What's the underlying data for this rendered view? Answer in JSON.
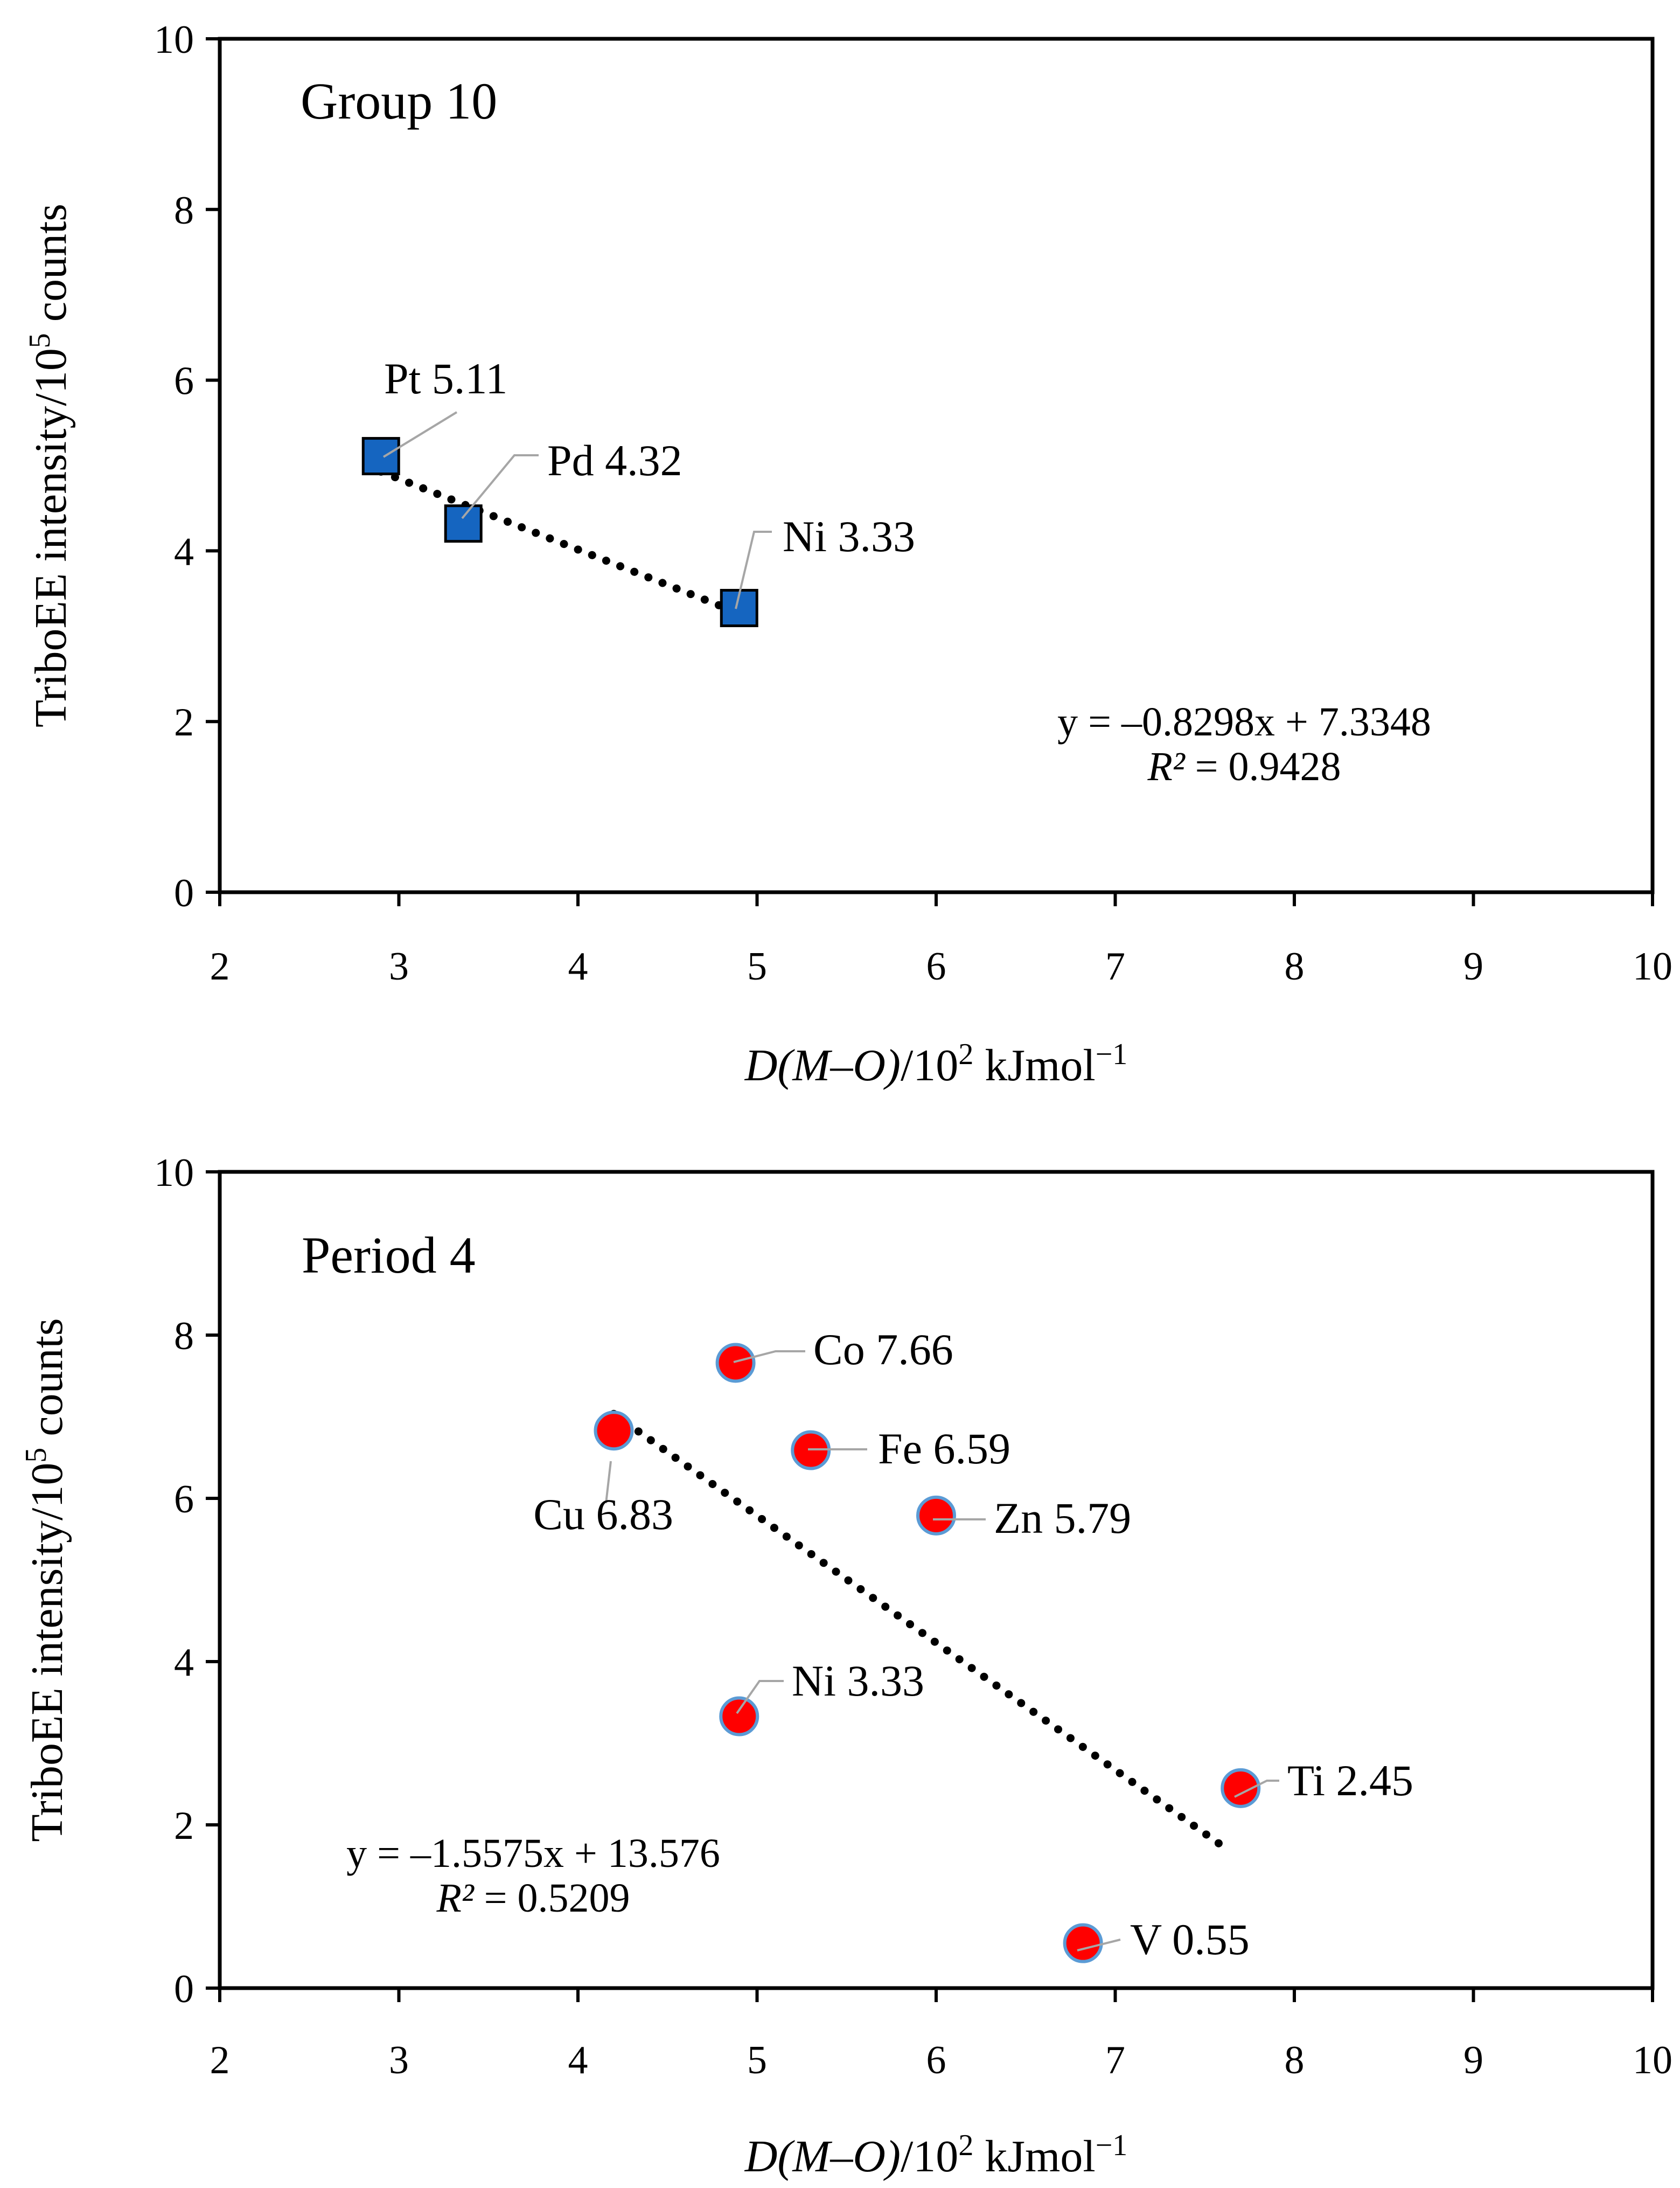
{
  "colors": {
    "square_fill": "#1565c0",
    "circle_fill": "#ff0000",
    "circle_stroke": "#5b9bd5",
    "leader": "#a6a6a6",
    "trend": "#000000"
  },
  "chart_data": [
    {
      "type": "scatter",
      "title": "Group 10",
      "marker": "square",
      "xlabel": {
        "prefix": "D(M–O)",
        "base": "/10",
        "sup": "2",
        "suffix": " kJmol",
        "unit_sup": "−1"
      },
      "ylabel": {
        "prefix": "TriboEE intensity/10",
        "sup": "5",
        "suffix": " counts"
      },
      "xlim": [
        2,
        10
      ],
      "ylim": [
        0,
        10
      ],
      "xticks": [
        2,
        3,
        4,
        5,
        6,
        7,
        8,
        9,
        10
      ],
      "yticks": [
        0,
        2,
        4,
        6,
        8,
        10
      ],
      "points": [
        {
          "name": "Pt 5.11",
          "x": 2.9,
          "y": 5.11
        },
        {
          "name": "Pd 4.32",
          "x": 3.36,
          "y": 4.32
        },
        {
          "name": "Ni 3.33",
          "x": 4.9,
          "y": 3.33
        }
      ],
      "trendline": {
        "style": "dotted",
        "slope": -0.8298,
        "intercept": 7.3348,
        "x_range": [
          2.9,
          4.9
        ]
      },
      "equation": "y = –0.8298x + 7.3348",
      "r2_label": "R²",
      "r2_value": " = 0.9428"
    },
    {
      "type": "scatter",
      "title": "Period 4",
      "marker": "circle",
      "xlabel": {
        "prefix": "D(M–O)",
        "base": "/10",
        "sup": "2",
        "suffix": " kJmol",
        "unit_sup": "−1"
      },
      "ylabel": {
        "prefix": "TriboEE intensity/10",
        "sup": "5",
        "suffix": " counts"
      },
      "xlim": [
        2,
        10
      ],
      "ylim": [
        0,
        10
      ],
      "xticks": [
        2,
        3,
        4,
        5,
        6,
        7,
        8,
        9,
        10
      ],
      "yticks": [
        0,
        2,
        4,
        6,
        8,
        10
      ],
      "points": [
        {
          "name": "Co 7.66",
          "x": 4.88,
          "y": 7.66
        },
        {
          "name": "Cu 6.83",
          "x": 4.2,
          "y": 6.83
        },
        {
          "name": "Fe 6.59",
          "x": 5.3,
          "y": 6.59
        },
        {
          "name": "Zn 5.79",
          "x": 6.0,
          "y": 5.79
        },
        {
          "name": "Ni 3.33",
          "x": 4.9,
          "y": 3.33
        },
        {
          "name": "Ti 2.45",
          "x": 7.7,
          "y": 2.45
        },
        {
          "name": "V 0.55",
          "x": 6.82,
          "y": 0.55
        }
      ],
      "trendline": {
        "style": "dotted",
        "slope": -1.5575,
        "intercept": 13.576,
        "x_range": [
          4.2,
          7.6
        ]
      },
      "equation": "y = –1.5575x + 13.576",
      "r2_label": "R²",
      "r2_value": " = 0.5209"
    }
  ]
}
